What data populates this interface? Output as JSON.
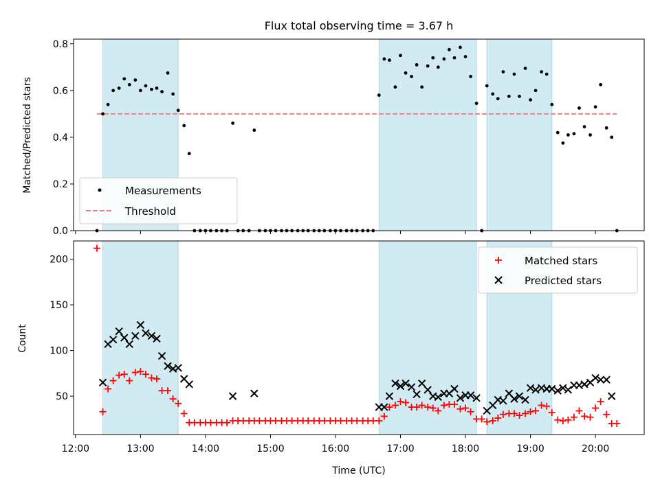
{
  "figure_title": "Flux total observing time = 3.67 h",
  "colors": {
    "band": "#add8e6",
    "measurement": "#000000",
    "threshold": "#f08080",
    "matched": "#ff0000",
    "predicted": "#000000"
  },
  "bands": [
    [
      12.42,
      13.58
    ],
    [
      16.67,
      18.17
    ],
    [
      18.33,
      19.33
    ]
  ],
  "chart_data": [
    {
      "type": "scatter",
      "ylabel": "Matched/Predicted stars",
      "xlim": [
        11.97,
        20.75
      ],
      "ylim": [
        0,
        0.82
      ],
      "yticks": [
        0.0,
        0.2,
        0.4,
        0.6,
        0.8
      ],
      "ytick_labels": [
        "0.0",
        "0.2",
        "0.4",
        "0.6",
        "0.8"
      ],
      "legend": {
        "placement": "lower-left"
      },
      "threshold": {
        "name": "Threshold",
        "y": 0.5,
        "x_range": [
          12.33,
          20.33
        ]
      },
      "series": [
        {
          "name": "Measurements",
          "marker": "dot",
          "points": [
            [
              12.33,
              0.0
            ],
            [
              12.42,
              0.5
            ],
            [
              12.5,
              0.54
            ],
            [
              12.58,
              0.6
            ],
            [
              12.67,
              0.61
            ],
            [
              12.75,
              0.65
            ],
            [
              12.83,
              0.625
            ],
            [
              12.92,
              0.645
            ],
            [
              13.0,
              0.6
            ],
            [
              13.08,
              0.62
            ],
            [
              13.17,
              0.605
            ],
            [
              13.25,
              0.61
            ],
            [
              13.33,
              0.595
            ],
            [
              13.42,
              0.675
            ],
            [
              13.5,
              0.585
            ],
            [
              13.58,
              0.515
            ],
            [
              13.67,
              0.45
            ],
            [
              13.75,
              0.33
            ],
            [
              13.83,
              0.0
            ],
            [
              13.92,
              0.0
            ],
            [
              14.0,
              0.0
            ],
            [
              14.08,
              0.0
            ],
            [
              14.17,
              0.0
            ],
            [
              14.25,
              0.0
            ],
            [
              14.33,
              0.0
            ],
            [
              14.42,
              0.46
            ],
            [
              14.5,
              0.0
            ],
            [
              14.58,
              0.0
            ],
            [
              14.67,
              0.0
            ],
            [
              14.75,
              0.43
            ],
            [
              14.83,
              0.0
            ],
            [
              14.92,
              0.0
            ],
            [
              15.0,
              0.0
            ],
            [
              15.08,
              0.0
            ],
            [
              15.17,
              0.0
            ],
            [
              15.25,
              0.0
            ],
            [
              15.33,
              0.0
            ],
            [
              15.42,
              0.0
            ],
            [
              15.5,
              0.0
            ],
            [
              15.58,
              0.0
            ],
            [
              15.67,
              0.0
            ],
            [
              15.75,
              0.0
            ],
            [
              15.83,
              0.0
            ],
            [
              15.92,
              0.0
            ],
            [
              16.0,
              0.0
            ],
            [
              16.08,
              0.0
            ],
            [
              16.17,
              0.0
            ],
            [
              16.25,
              0.0
            ],
            [
              16.33,
              0.0
            ],
            [
              16.42,
              0.0
            ],
            [
              16.5,
              0.0
            ],
            [
              16.58,
              0.0
            ],
            [
              16.67,
              0.58
            ],
            [
              16.75,
              0.735
            ],
            [
              16.83,
              0.73
            ],
            [
              16.92,
              0.615
            ],
            [
              17.0,
              0.75
            ],
            [
              17.08,
              0.675
            ],
            [
              17.17,
              0.66
            ],
            [
              17.25,
              0.71
            ],
            [
              17.33,
              0.615
            ],
            [
              17.42,
              0.705
            ],
            [
              17.5,
              0.74
            ],
            [
              17.58,
              0.7
            ],
            [
              17.67,
              0.735
            ],
            [
              17.75,
              0.775
            ],
            [
              17.83,
              0.74
            ],
            [
              17.92,
              0.785
            ],
            [
              18.0,
              0.745
            ],
            [
              18.08,
              0.66
            ],
            [
              18.17,
              0.545
            ],
            [
              18.25,
              0.0
            ],
            [
              18.33,
              0.62
            ],
            [
              18.42,
              0.585
            ],
            [
              18.5,
              0.565
            ],
            [
              18.58,
              0.68
            ],
            [
              18.67,
              0.575
            ],
            [
              18.75,
              0.67
            ],
            [
              18.83,
              0.575
            ],
            [
              18.92,
              0.695
            ],
            [
              19.0,
              0.56
            ],
            [
              19.08,
              0.6
            ],
            [
              19.17,
              0.68
            ],
            [
              19.25,
              0.67
            ],
            [
              19.33,
              0.54
            ],
            [
              19.42,
              0.42
            ],
            [
              19.5,
              0.375
            ],
            [
              19.58,
              0.41
            ],
            [
              19.67,
              0.415
            ],
            [
              19.75,
              0.525
            ],
            [
              19.83,
              0.445
            ],
            [
              19.92,
              0.41
            ],
            [
              20.0,
              0.53
            ],
            [
              20.08,
              0.625
            ],
            [
              20.17,
              0.44
            ],
            [
              20.25,
              0.4
            ],
            [
              20.33,
              0.0
            ]
          ]
        }
      ]
    },
    {
      "type": "scatter",
      "xlabel": "Time (UTC)",
      "ylabel": "Count",
      "xlim": [
        11.97,
        20.75
      ],
      "ylim": [
        8,
        220
      ],
      "xticks": [
        12,
        13,
        14,
        15,
        16,
        17,
        18,
        19,
        20
      ],
      "xtick_labels": [
        "12:00",
        "13:00",
        "14:00",
        "15:00",
        "16:00",
        "17:00",
        "18:00",
        "19:00",
        "20:00"
      ],
      "yticks": [
        50,
        100,
        150,
        200
      ],
      "ytick_labels": [
        "50",
        "100",
        "150",
        "200"
      ],
      "legend": {
        "placement": "top-right"
      },
      "series": [
        {
          "name": "Matched stars",
          "marker": "plus",
          "points": [
            [
              12.33,
              212
            ],
            [
              12.42,
              33
            ],
            [
              12.5,
              58
            ],
            [
              12.58,
              67
            ],
            [
              12.67,
              73
            ],
            [
              12.75,
              74
            ],
            [
              12.83,
              67
            ],
            [
              12.92,
              76
            ],
            [
              13.0,
              77
            ],
            [
              13.08,
              74
            ],
            [
              13.17,
              70
            ],
            [
              13.25,
              69
            ],
            [
              13.33,
              56
            ],
            [
              13.42,
              56
            ],
            [
              13.5,
              47
            ],
            [
              13.58,
              42
            ],
            [
              13.67,
              31
            ],
            [
              13.75,
              21
            ],
            [
              13.83,
              21
            ],
            [
              13.92,
              21
            ],
            [
              14.0,
              21
            ],
            [
              14.08,
              21
            ],
            [
              14.17,
              21
            ],
            [
              14.25,
              21
            ],
            [
              14.33,
              21
            ],
            [
              14.42,
              23
            ],
            [
              14.5,
              23
            ],
            [
              14.58,
              23
            ],
            [
              14.67,
              23
            ],
            [
              14.75,
              23
            ],
            [
              14.83,
              23
            ],
            [
              14.92,
              23
            ],
            [
              15.0,
              23
            ],
            [
              15.08,
              23
            ],
            [
              15.17,
              23
            ],
            [
              15.25,
              23
            ],
            [
              15.33,
              23
            ],
            [
              15.42,
              23
            ],
            [
              15.5,
              23
            ],
            [
              15.58,
              23
            ],
            [
              15.67,
              23
            ],
            [
              15.75,
              23
            ],
            [
              15.83,
              23
            ],
            [
              15.92,
              23
            ],
            [
              16.0,
              23
            ],
            [
              16.08,
              23
            ],
            [
              16.17,
              23
            ],
            [
              16.25,
              23
            ],
            [
              16.33,
              23
            ],
            [
              16.42,
              23
            ],
            [
              16.5,
              23
            ],
            [
              16.58,
              23
            ],
            [
              16.67,
              23
            ],
            [
              16.75,
              28
            ],
            [
              16.83,
              38
            ],
            [
              16.92,
              40
            ],
            [
              17.0,
              44
            ],
            [
              17.08,
              43
            ],
            [
              17.17,
              38
            ],
            [
              17.25,
              38
            ],
            [
              17.33,
              40
            ],
            [
              17.42,
              38
            ],
            [
              17.5,
              37
            ],
            [
              17.58,
              34
            ],
            [
              17.67,
              40
            ],
            [
              17.75,
              41
            ],
            [
              17.83,
              41
            ],
            [
              17.92,
              36
            ],
            [
              18.0,
              37
            ],
            [
              18.08,
              33
            ],
            [
              18.17,
              25
            ],
            [
              18.25,
              25
            ],
            [
              18.33,
              22
            ],
            [
              18.42,
              23
            ],
            [
              18.5,
              26
            ],
            [
              18.58,
              30
            ],
            [
              18.67,
              31
            ],
            [
              18.75,
              31
            ],
            [
              18.83,
              29
            ],
            [
              18.92,
              31
            ],
            [
              19.0,
              33
            ],
            [
              19.08,
              34
            ],
            [
              19.17,
              40
            ],
            [
              19.25,
              39
            ],
            [
              19.33,
              32
            ],
            [
              19.42,
              24
            ],
            [
              19.5,
              23
            ],
            [
              19.58,
              24
            ],
            [
              19.67,
              27
            ],
            [
              19.75,
              34
            ],
            [
              19.83,
              28
            ],
            [
              19.92,
              27
            ],
            [
              20.0,
              37
            ],
            [
              20.08,
              44
            ],
            [
              20.17,
              30
            ],
            [
              20.25,
              20
            ],
            [
              20.33,
              20
            ]
          ]
        },
        {
          "name": "Predicted stars",
          "marker": "x",
          "points": [
            [
              12.42,
              65
            ],
            [
              12.5,
              107
            ],
            [
              12.58,
              112
            ],
            [
              12.67,
              121
            ],
            [
              12.75,
              114
            ],
            [
              12.83,
              107
            ],
            [
              12.92,
              116
            ],
            [
              13.0,
              128
            ],
            [
              13.08,
              119
            ],
            [
              13.17,
              116
            ],
            [
              13.25,
              113
            ],
            [
              13.33,
              94
            ],
            [
              13.42,
              83
            ],
            [
              13.5,
              80
            ],
            [
              13.58,
              81
            ],
            [
              13.67,
              69
            ],
            [
              13.75,
              63
            ],
            [
              14.42,
              50
            ],
            [
              14.75,
              53
            ],
            [
              16.67,
              38
            ],
            [
              16.75,
              38
            ],
            [
              16.83,
              50
            ],
            [
              16.92,
              64
            ],
            [
              17.0,
              61
            ],
            [
              17.08,
              64
            ],
            [
              17.17,
              60
            ],
            [
              17.25,
              52
            ],
            [
              17.33,
              64
            ],
            [
              17.42,
              57
            ],
            [
              17.5,
              50
            ],
            [
              17.58,
              49
            ],
            [
              17.67,
              53
            ],
            [
              17.75,
              53
            ],
            [
              17.83,
              58
            ],
            [
              17.92,
              48
            ],
            [
              18.0,
              51
            ],
            [
              18.08,
              51
            ],
            [
              18.17,
              48
            ],
            [
              18.33,
              34
            ],
            [
              18.42,
              40
            ],
            [
              18.5,
              46
            ],
            [
              18.58,
              45
            ],
            [
              18.67,
              53
            ],
            [
              18.75,
              47
            ],
            [
              18.83,
              50
            ],
            [
              18.92,
              46
            ],
            [
              19.0,
              59
            ],
            [
              19.08,
              57
            ],
            [
              19.17,
              59
            ],
            [
              19.25,
              58
            ],
            [
              19.33,
              58
            ],
            [
              19.42,
              56
            ],
            [
              19.5,
              59
            ],
            [
              19.58,
              57
            ],
            [
              19.67,
              62
            ],
            [
              19.75,
              62
            ],
            [
              19.83,
              63
            ],
            [
              19.92,
              65
            ],
            [
              20.0,
              70
            ],
            [
              20.08,
              68
            ],
            [
              20.17,
              68
            ],
            [
              20.25,
              50
            ]
          ]
        }
      ]
    }
  ]
}
